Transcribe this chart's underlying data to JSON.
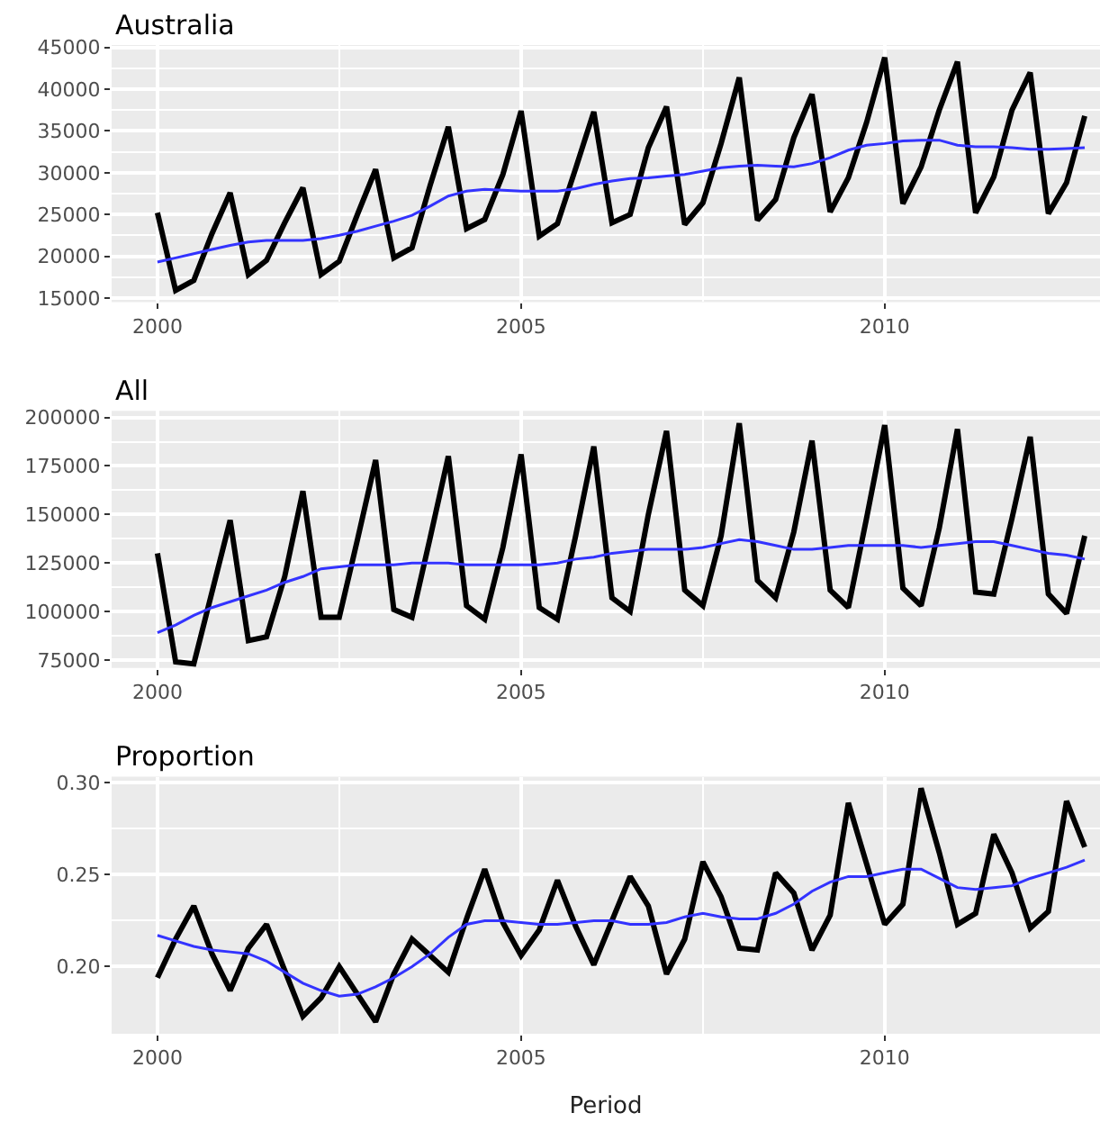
{
  "chart_data": [
    {
      "type": "line",
      "title": "Australia",
      "x": [
        2000,
        2000.25,
        2000.5,
        2000.75,
        2001,
        2001.25,
        2001.5,
        2001.75,
        2002,
        2002.25,
        2002.5,
        2002.75,
        2003,
        2003.25,
        2003.5,
        2003.75,
        2004,
        2004.25,
        2004.5,
        2004.75,
        2005,
        2005.25,
        2005.5,
        2005.75,
        2006,
        2006.25,
        2006.5,
        2006.75,
        2007,
        2007.25,
        2007.5,
        2007.75,
        2008,
        2008.25,
        2008.5,
        2008.75,
        2009,
        2009.25,
        2009.5,
        2009.75,
        2010,
        2010.25,
        2010.5,
        2010.75,
        2011,
        2011.25,
        2011.5,
        2011.75,
        2012,
        2012.25,
        2012.5,
        2012.75
      ],
      "series": [
        {
          "color": "#000000",
          "values": [
            25200,
            15900,
            17100,
            22700,
            27600,
            17800,
            19500,
            24000,
            28200,
            17800,
            19400,
            25000,
            30400,
            19800,
            21000,
            28500,
            35500,
            23300,
            24400,
            29800,
            37400,
            22400,
            23900,
            30500,
            37300,
            24000,
            25000,
            33000,
            37900,
            23800,
            26400,
            33500,
            41400,
            24300,
            26800,
            34200,
            39400,
            25300,
            29400,
            36000,
            43800,
            26300,
            30700,
            37500,
            43300,
            25200,
            29500,
            37500,
            42000,
            25100,
            28800,
            36800
          ]
        },
        {
          "color": "#3333ff",
          "values": [
            19300,
            19800,
            20300,
            20800,
            21300,
            21700,
            21900,
            21900,
            21900,
            22100,
            22500,
            23000,
            23600,
            24200,
            24900,
            26000,
            27200,
            27800,
            28000,
            27900,
            27800,
            27800,
            27800,
            28100,
            28600,
            29000,
            29300,
            29400,
            29600,
            29800,
            30200,
            30600,
            30800,
            30900,
            30800,
            30700,
            31100,
            31800,
            32700,
            33300,
            33500,
            33800,
            33900,
            33900,
            33300,
            33100,
            33100,
            33000,
            32800,
            32800,
            32900,
            33000
          ]
        }
      ],
      "xlim": [
        1999.37,
        2012.96
      ],
      "xticks": [
        2000,
        2005,
        2010
      ],
      "ylim": [
        14500,
        45300
      ],
      "yticks": [
        15000,
        20000,
        25000,
        30000,
        35000,
        40000,
        45000
      ],
      "grid": true
    },
    {
      "type": "line",
      "title": "All",
      "x": [
        2000,
        2000.25,
        2000.5,
        2000.75,
        2001,
        2001.25,
        2001.5,
        2001.75,
        2002,
        2002.25,
        2002.5,
        2002.75,
        2003,
        2003.25,
        2003.5,
        2003.75,
        2004,
        2004.25,
        2004.5,
        2004.75,
        2005,
        2005.25,
        2005.5,
        2005.75,
        2006,
        2006.25,
        2006.5,
        2006.75,
        2007,
        2007.25,
        2007.5,
        2007.75,
        2008,
        2008.25,
        2008.5,
        2008.75,
        2009,
        2009.25,
        2009.5,
        2009.75,
        2010,
        2010.25,
        2010.5,
        2010.75,
        2011,
        2011.25,
        2011.5,
        2011.75,
        2012,
        2012.25,
        2012.5,
        2012.75
      ],
      "series": [
        {
          "color": "#000000",
          "values": [
            130000,
            74000,
            73000,
            110000,
            147000,
            85000,
            87000,
            118000,
            162000,
            97000,
            97000,
            137000,
            178000,
            101000,
            97000,
            138000,
            180000,
            103000,
            96000,
            133000,
            181000,
            102000,
            96000,
            139000,
            185000,
            107000,
            100000,
            150000,
            193000,
            111000,
            103000,
            139000,
            197000,
            116000,
            107000,
            141000,
            188000,
            111000,
            102000,
            148000,
            196000,
            112000,
            103000,
            143000,
            194000,
            110000,
            109000,
            148000,
            190000,
            109000,
            99000,
            139000
          ]
        },
        {
          "color": "#3333ff",
          "values": [
            89000,
            93000,
            98000,
            102000,
            105000,
            108000,
            111000,
            115000,
            118000,
            122000,
            123000,
            124000,
            124000,
            124000,
            125000,
            125000,
            125000,
            124000,
            124000,
            124000,
            124000,
            124000,
            125000,
            127000,
            128000,
            130000,
            131000,
            132000,
            132000,
            132000,
            133000,
            135000,
            137000,
            136000,
            134000,
            132000,
            132000,
            133000,
            134000,
            134000,
            134000,
            134000,
            133000,
            134000,
            135000,
            136000,
            136000,
            134000,
            132000,
            130000,
            129000,
            127000
          ]
        }
      ],
      "xlim": [
        1999.37,
        2012.96
      ],
      "xticks": [
        2000,
        2005,
        2010
      ],
      "ylim": [
        70900,
        203400
      ],
      "yticks": [
        75000,
        100000,
        125000,
        150000,
        175000,
        200000
      ],
      "grid": true
    },
    {
      "type": "line",
      "title": "Proportion",
      "xlabel": "Period",
      "x": [
        2000,
        2000.25,
        2000.5,
        2000.75,
        2001,
        2001.25,
        2001.5,
        2001.75,
        2002,
        2002.25,
        2002.5,
        2002.75,
        2003,
        2003.25,
        2003.5,
        2003.75,
        2004,
        2004.25,
        2004.5,
        2004.75,
        2005,
        2005.25,
        2005.5,
        2005.75,
        2006,
        2006.25,
        2006.5,
        2006.75,
        2007,
        2007.25,
        2007.5,
        2007.75,
        2008,
        2008.25,
        2008.5,
        2008.75,
        2009,
        2009.25,
        2009.5,
        2009.75,
        2010,
        2010.25,
        2010.5,
        2010.75,
        2011,
        2011.25,
        2011.5,
        2011.75,
        2012,
        2012.25,
        2012.5,
        2012.75
      ],
      "series": [
        {
          "color": "#000000",
          "values": [
            0.194,
            0.215,
            0.233,
            0.207,
            0.187,
            0.21,
            0.223,
            0.198,
            0.173,
            0.183,
            0.2,
            0.185,
            0.17,
            0.196,
            0.215,
            0.206,
            0.197,
            0.226,
            0.253,
            0.224,
            0.206,
            0.22,
            0.247,
            0.222,
            0.201,
            0.225,
            0.249,
            0.233,
            0.196,
            0.215,
            0.257,
            0.238,
            0.21,
            0.209,
            0.251,
            0.24,
            0.209,
            0.228,
            0.289,
            0.256,
            0.223,
            0.234,
            0.297,
            0.262,
            0.223,
            0.229,
            0.272,
            0.251,
            0.221,
            0.23,
            0.29,
            0.265
          ]
        },
        {
          "color": "#3333ff",
          "values": [
            0.217,
            0.214,
            0.211,
            0.209,
            0.208,
            0.207,
            0.203,
            0.197,
            0.191,
            0.187,
            0.184,
            0.185,
            0.189,
            0.194,
            0.2,
            0.207,
            0.216,
            0.223,
            0.225,
            0.225,
            0.224,
            0.223,
            0.223,
            0.224,
            0.225,
            0.225,
            0.223,
            0.223,
            0.224,
            0.227,
            0.229,
            0.227,
            0.226,
            0.226,
            0.229,
            0.234,
            0.241,
            0.246,
            0.249,
            0.249,
            0.251,
            0.253,
            0.253,
            0.248,
            0.243,
            0.242,
            0.243,
            0.244,
            0.248,
            0.251,
            0.254,
            0.258
          ]
        }
      ],
      "xlim": [
        1999.37,
        2012.96
      ],
      "xticks": [
        2000,
        2005,
        2010
      ],
      "ylim": [
        0.1635,
        0.3033
      ],
      "yticks": [
        {
          "value": 0.2,
          "label": "0.20"
        },
        {
          "value": 0.25,
          "label": "0.25"
        },
        {
          "value": 0.3,
          "label": "0.30"
        }
      ],
      "grid": true
    }
  ]
}
